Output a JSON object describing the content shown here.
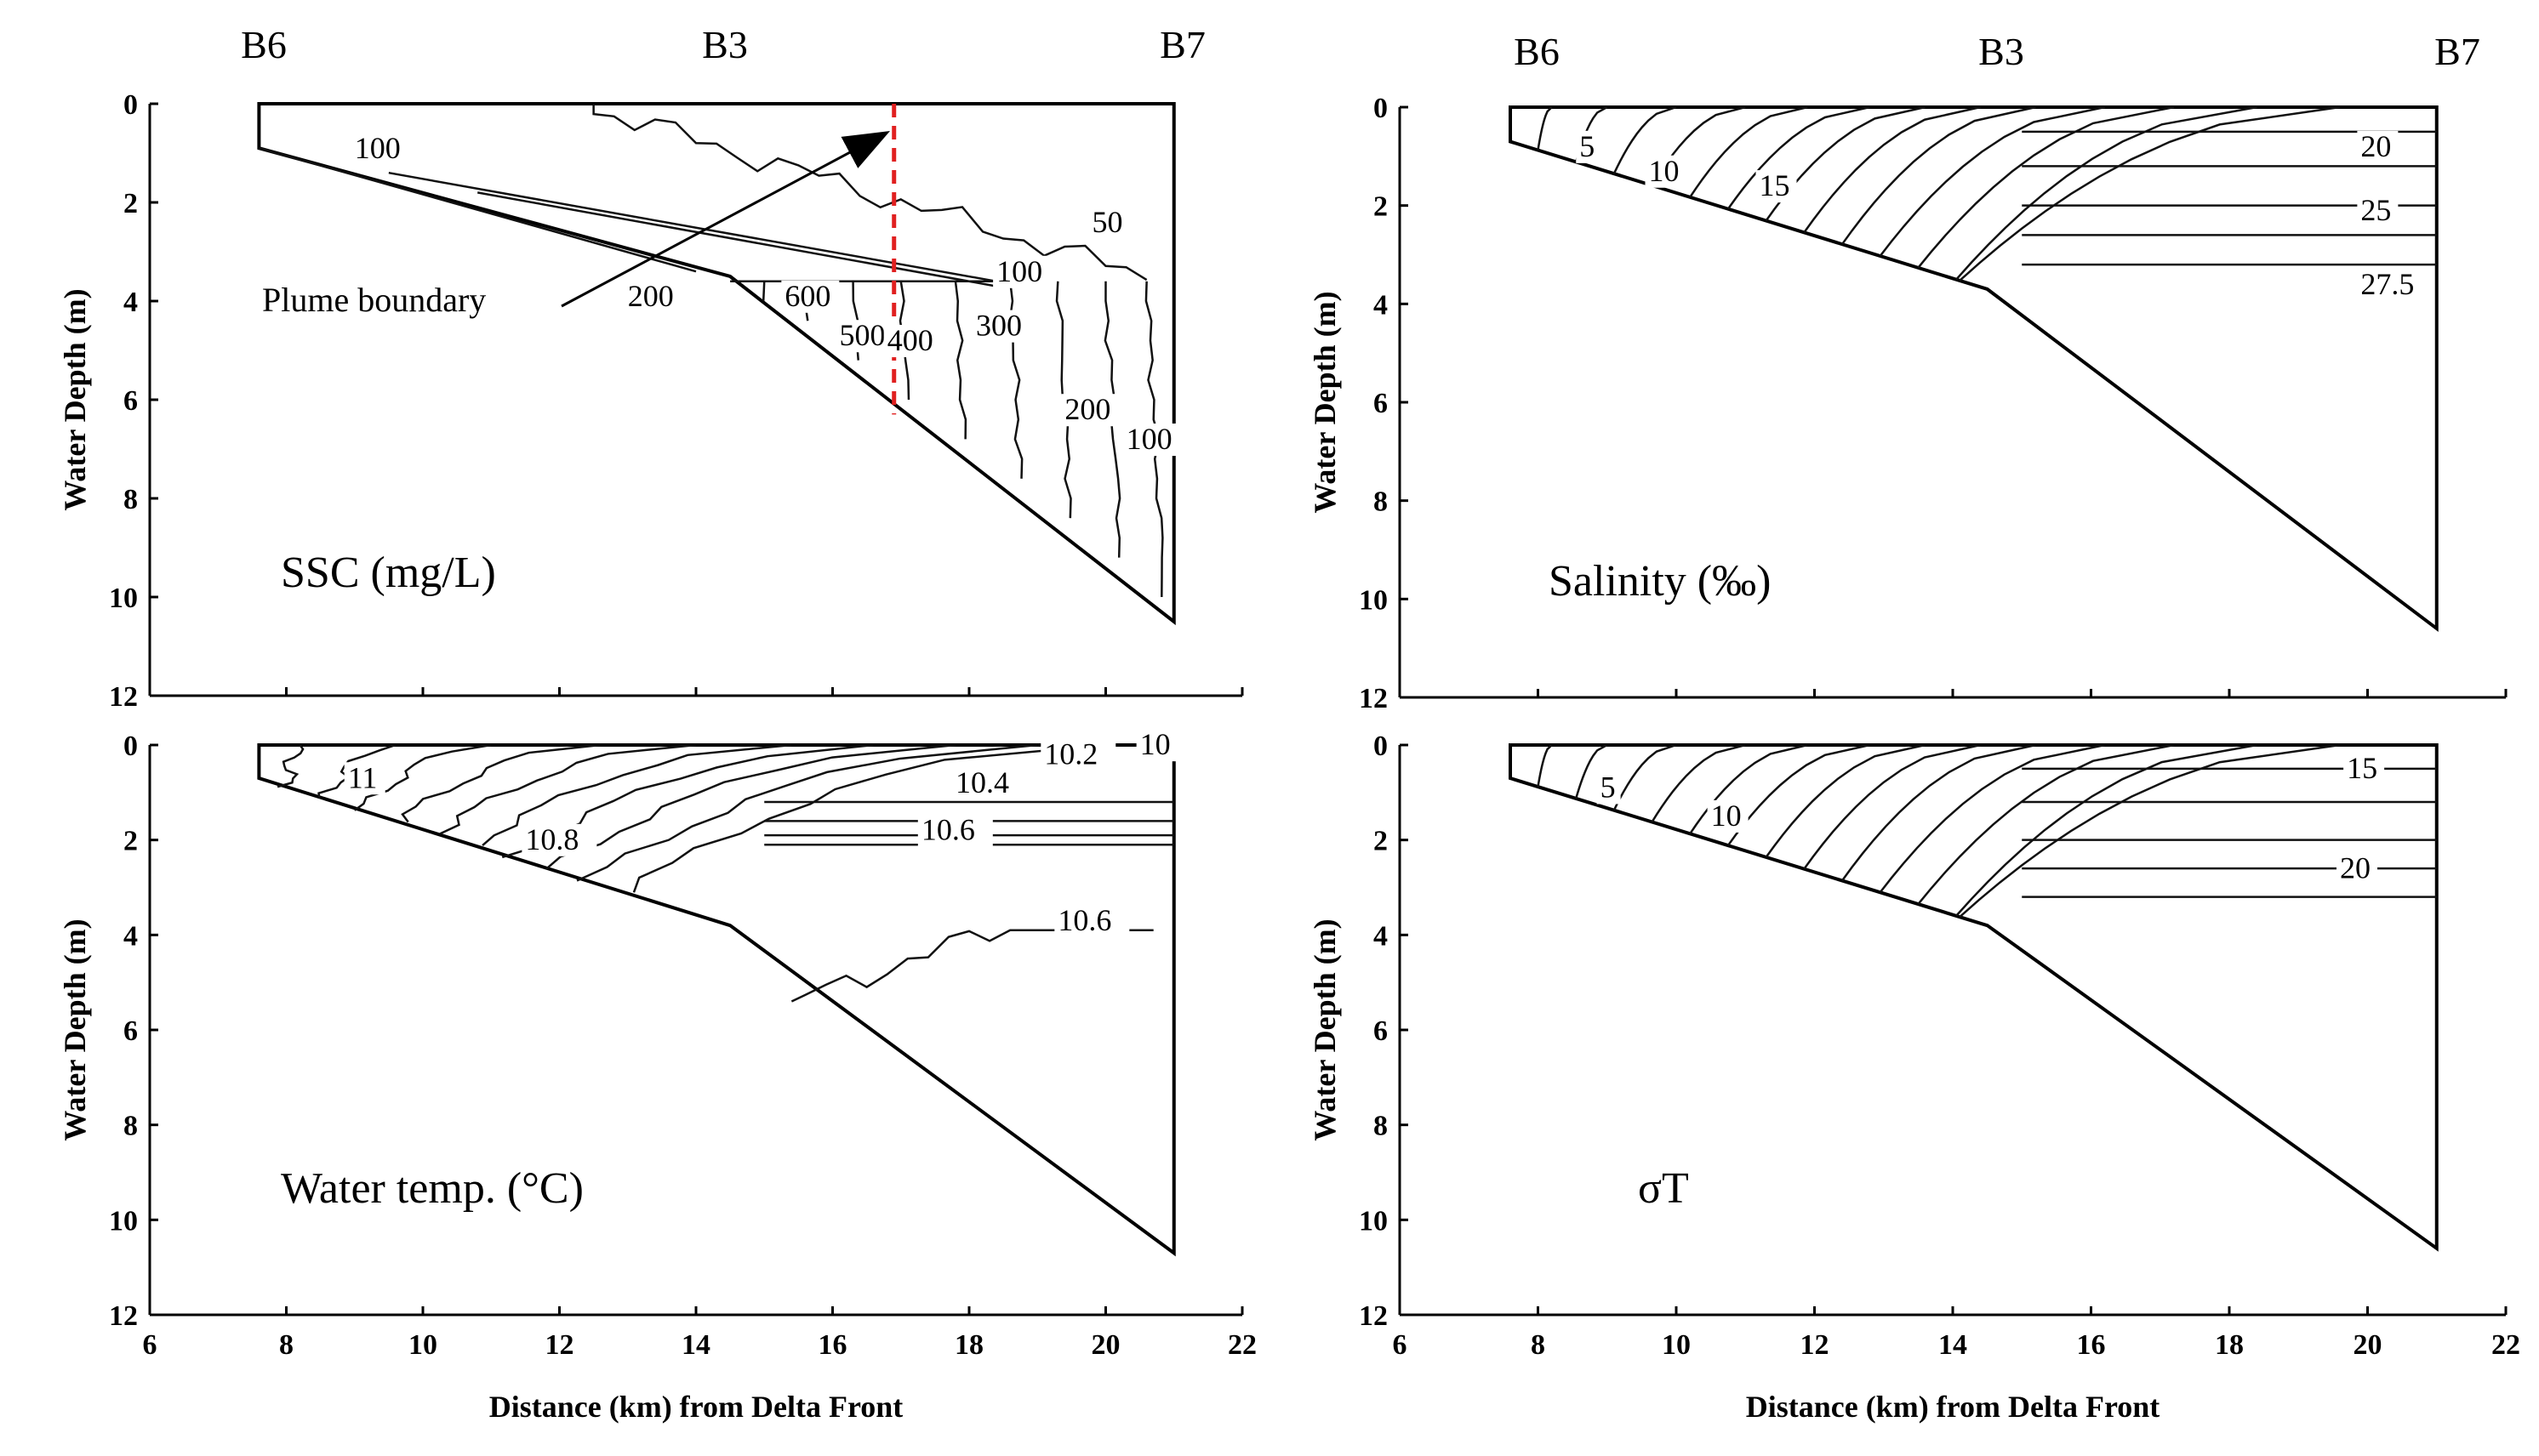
{
  "chart_data": [
    {
      "type": "contour",
      "panel": "ssc",
      "title": "SSC (mg/L)",
      "stations": [
        "B6",
        "B3",
        "B7"
      ],
      "xlabel": "",
      "ylabel": "Water Depth (m)",
      "xlim": [
        6,
        22
      ],
      "ylim": [
        12,
        0
      ],
      "yticks": [
        0,
        2,
        4,
        6,
        8,
        10,
        12
      ],
      "bottom_profile": [
        [
          7.6,
          0.9
        ],
        [
          14.5,
          3.5
        ],
        [
          21.0,
          10.5
        ]
      ],
      "contour_labels": [
        {
          "text": "100",
          "x": 9.0,
          "y": 1.1
        },
        {
          "text": "50",
          "x": 19.8,
          "y": 2.6
        },
        {
          "text": "100",
          "x": 18.4,
          "y": 3.6
        },
        {
          "text": "200",
          "x": 13.0,
          "y": 4.1
        },
        {
          "text": "600",
          "x": 15.3,
          "y": 4.1
        },
        {
          "text": "500",
          "x": 16.1,
          "y": 4.9
        },
        {
          "text": "400",
          "x": 16.8,
          "y": 5.0
        },
        {
          "text": "300",
          "x": 18.1,
          "y": 4.7
        },
        {
          "text": "200",
          "x": 19.4,
          "y": 6.4
        },
        {
          "text": "100",
          "x": 20.3,
          "y": 7.0
        }
      ],
      "annotation": {
        "text": "Plume boundary",
        "line_x": 16.9
      }
    },
    {
      "type": "contour",
      "panel": "salinity",
      "title": "Salinity (‰)",
      "stations": [
        "B6",
        "B3",
        "B7"
      ],
      "xlabel": "",
      "ylabel": "Water Depth (m)",
      "xlim": [
        6,
        22
      ],
      "ylim": [
        12,
        0
      ],
      "yticks": [
        0,
        2,
        4,
        6,
        8,
        10,
        12
      ],
      "bottom_profile": [
        [
          7.6,
          0.7
        ],
        [
          14.5,
          3.7
        ],
        [
          21.0,
          10.6
        ]
      ],
      "contour_labels": [
        {
          "text": "5",
          "x": 8.6,
          "y": 1.0
        },
        {
          "text": "10",
          "x": 9.6,
          "y": 1.5
        },
        {
          "text": "15",
          "x": 11.2,
          "y": 1.8
        },
        {
          "text": "20",
          "x": 19.9,
          "y": 1.0
        },
        {
          "text": "25",
          "x": 19.9,
          "y": 2.3
        },
        {
          "text": "27.5",
          "x": 19.9,
          "y": 3.8
        }
      ]
    },
    {
      "type": "contour",
      "panel": "temperature",
      "title": "Water temp. (°C)",
      "xlabel": "Distance (km) from Delta Front",
      "ylabel": "Water Depth (m)",
      "xlim": [
        6,
        22
      ],
      "ylim": [
        12,
        0
      ],
      "xticks": [
        6,
        8,
        10,
        12,
        14,
        16,
        18,
        20,
        22
      ],
      "yticks": [
        0,
        2,
        4,
        6,
        8,
        10,
        12
      ],
      "bottom_profile": [
        [
          7.6,
          0.7
        ],
        [
          14.5,
          3.8
        ],
        [
          21.0,
          10.7
        ]
      ],
      "contour_labels": [
        {
          "text": "11",
          "x": 8.9,
          "y": 0.9
        },
        {
          "text": "10.8",
          "x": 11.5,
          "y": 2.2
        },
        {
          "text": "10.6",
          "x": 17.3,
          "y": 2.0
        },
        {
          "text": "10.4",
          "x": 17.8,
          "y": 1.0
        },
        {
          "text": "10.2",
          "x": 19.1,
          "y": 0.4
        },
        {
          "text": "10",
          "x": 20.5,
          "y": 0.2
        },
        {
          "text": "10.6",
          "x": 19.3,
          "y": 3.9
        }
      ]
    },
    {
      "type": "contour",
      "panel": "sigma_t",
      "title": "σT",
      "xlabel": "Distance (km) from Delta Front",
      "ylabel": "Water Depth (m)",
      "xlim": [
        6,
        22
      ],
      "ylim": [
        12,
        0
      ],
      "xticks": [
        6,
        8,
        10,
        12,
        14,
        16,
        18,
        20,
        22
      ],
      "yticks": [
        0,
        2,
        4,
        6,
        8,
        10,
        12
      ],
      "bottom_profile": [
        [
          7.6,
          0.7
        ],
        [
          14.5,
          3.8
        ],
        [
          21.0,
          10.6
        ]
      ],
      "contour_labels": [
        {
          "text": "5",
          "x": 8.9,
          "y": 1.1
        },
        {
          "text": "10",
          "x": 10.5,
          "y": 1.7
        },
        {
          "text": "15",
          "x": 19.7,
          "y": 0.7
        },
        {
          "text": "20",
          "x": 19.6,
          "y": 2.8
        }
      ]
    }
  ]
}
